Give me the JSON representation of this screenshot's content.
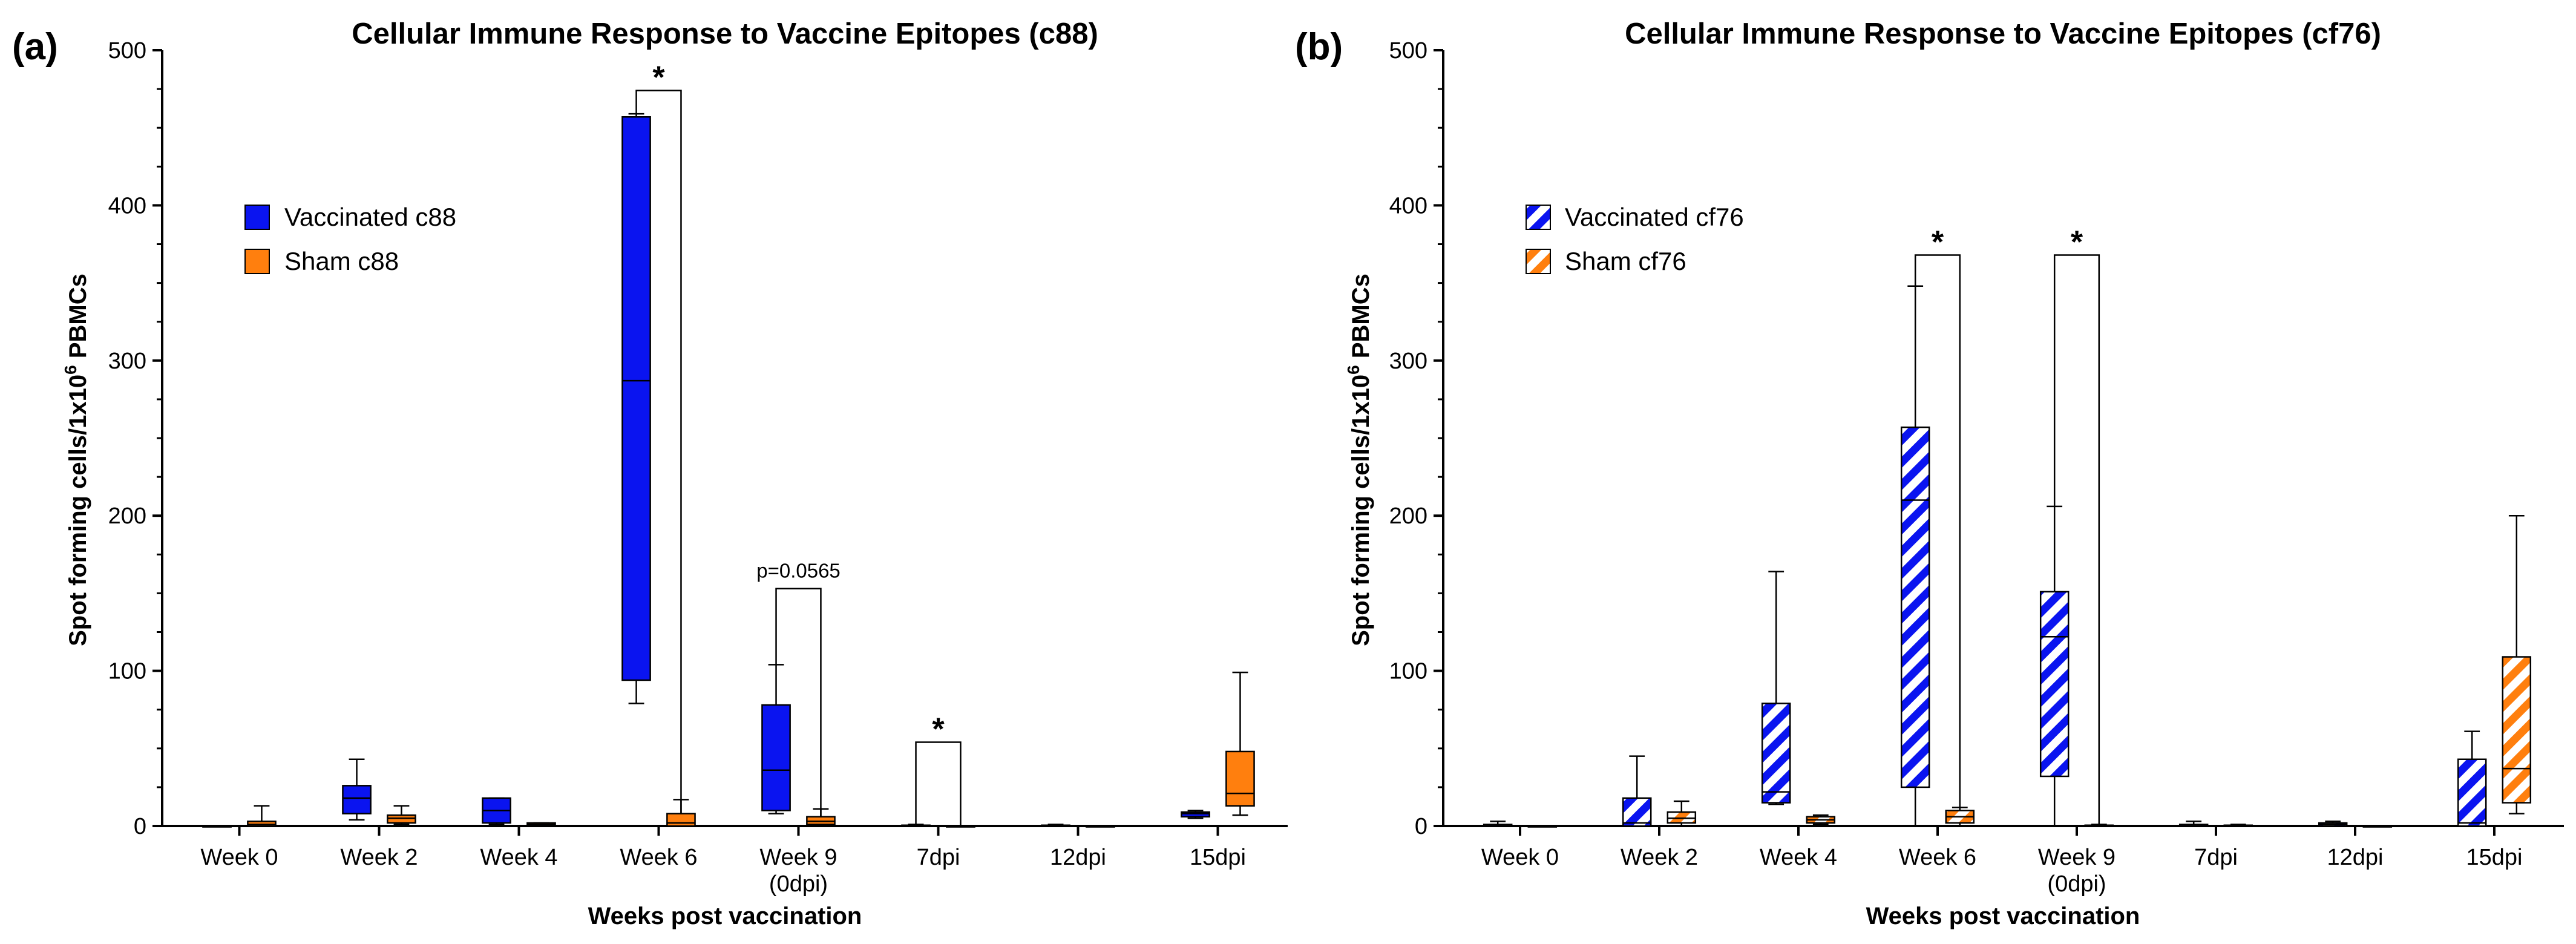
{
  "chart_data": [
    {
      "panel_label": "(a)",
      "type": "box",
      "title": "Cellular Immune Response to Vaccine Epitopes (c88)",
      "xlabel": "Weeks post vaccination",
      "ylabel_main": "Spot forming cells/1x10",
      "ylabel_sup": "6",
      "ylabel_tail": " PBMCs",
      "ylim": [
        0,
        500
      ],
      "yticks": [
        "0",
        "100",
        "200",
        "300",
        "400",
        "500"
      ],
      "categories": [
        [
          "Week 0"
        ],
        [
          "Week 2"
        ],
        [
          "Week 4"
        ],
        [
          "Week 6"
        ],
        [
          "Week 9",
          "(0dpi)"
        ],
        [
          "7dpi"
        ],
        [
          "12dpi"
        ],
        [
          "15dpi"
        ]
      ],
      "legend": [
        {
          "name": "Vaccinated c88",
          "color": "#0a14f0",
          "pattern": "solid"
        },
        {
          "name": "Sham c88",
          "color": "#ff7f0e",
          "pattern": "solid"
        }
      ],
      "series": [
        {
          "name": "Vaccinated c88",
          "color": "#0a14f0",
          "pattern": "solid",
          "boxes": [
            {
              "min": 0,
              "q1": 0,
              "median": 0,
              "q3": 0,
              "max": 0
            },
            {
              "min": 4,
              "q1": 8,
              "median": 18,
              "q3": 26,
              "max": 43
            },
            {
              "min": 1,
              "q1": 2,
              "median": 10,
              "q3": 18,
              "max": 18
            },
            {
              "min": 79,
              "q1": 94,
              "median": 287,
              "q3": 457,
              "max": 459
            },
            {
              "min": 8,
              "q1": 10,
              "median": 36,
              "q3": 78,
              "max": 104
            },
            {
              "min": 0,
              "q1": 0,
              "median": 0,
              "q3": 0.5,
              "max": 1
            },
            {
              "min": 0,
              "q1": 0,
              "median": 0,
              "q3": 0.5,
              "max": 1
            },
            {
              "min": 5,
              "q1": 6,
              "median": 8,
              "q3": 9,
              "max": 10
            }
          ]
        },
        {
          "name": "Sham c88",
          "color": "#ff7f0e",
          "pattern": "solid",
          "boxes": [
            {
              "min": 0,
              "q1": 0,
              "median": 1,
              "q3": 3,
              "max": 13
            },
            {
              "min": 1,
              "q1": 2,
              "median": 5,
              "q3": 7,
              "max": 13
            },
            {
              "min": 0,
              "q1": 0.5,
              "median": 1,
              "q3": 2,
              "max": 2
            },
            {
              "min": 0,
              "q1": 0,
              "median": 2,
              "q3": 8,
              "max": 17
            },
            {
              "min": 0,
              "q1": 1,
              "median": 3,
              "q3": 6,
              "max": 11
            },
            {
              "min": 0,
              "q1": 0,
              "median": 0,
              "q3": 0,
              "max": 0
            },
            {
              "min": 0,
              "q1": 0,
              "median": 0,
              "q3": 0,
              "max": 0
            },
            {
              "min": 7,
              "q1": 13,
              "median": 21,
              "q3": 48,
              "max": 99
            }
          ]
        }
      ],
      "brackets": [
        {
          "group": 3,
          "label": "*",
          "kind": "star",
          "y": 474
        },
        {
          "group": 4,
          "label": "p=0.0565",
          "kind": "text",
          "y": 153
        },
        {
          "group": 5,
          "label": "*",
          "kind": "star",
          "y": 54
        }
      ]
    },
    {
      "panel_label": "(b)",
      "type": "box",
      "title": "Cellular Immune Response to Vaccine Epitopes (cf76)",
      "xlabel": "Weeks post vaccination",
      "ylabel_main": "Spot forming cells/1x10",
      "ylabel_sup": "6",
      "ylabel_tail": " PBMCs",
      "ylim": [
        0,
        500
      ],
      "yticks": [
        "0",
        "100",
        "200",
        "300",
        "400",
        "500"
      ],
      "categories": [
        [
          "Week 0"
        ],
        [
          "Week 2"
        ],
        [
          "Week 4"
        ],
        [
          "Week 6"
        ],
        [
          "Week 9",
          "(0dpi)"
        ],
        [
          "7dpi"
        ],
        [
          "12dpi"
        ],
        [
          "15dpi"
        ]
      ],
      "legend": [
        {
          "name": "Vaccinated cf76",
          "color": "#0a14f0",
          "pattern": "hatched"
        },
        {
          "name": "Sham cf76",
          "color": "#ff7f0e",
          "pattern": "hatched"
        }
      ],
      "series": [
        {
          "name": "Vaccinated cf76",
          "color": "#0a14f0",
          "pattern": "hatched",
          "boxes": [
            {
              "min": 0,
              "q1": 0,
              "median": 0,
              "q3": 1,
              "max": 3
            },
            {
              "min": 0,
              "q1": 0,
              "median": 2,
              "q3": 18,
              "max": 45
            },
            {
              "min": 14,
              "q1": 15,
              "median": 22,
              "q3": 79,
              "max": 164
            },
            {
              "min": 0,
              "q1": 25,
              "median": 210,
              "q3": 257,
              "max": 348
            },
            {
              "min": 0,
              "q1": 32,
              "median": 122,
              "q3": 151,
              "max": 206
            },
            {
              "min": 0,
              "q1": 0,
              "median": 0,
              "q3": 1,
              "max": 3
            },
            {
              "min": 0,
              "q1": 0,
              "median": 1,
              "q3": 2,
              "max": 3
            },
            {
              "min": 0,
              "q1": 0,
              "median": 2,
              "q3": 43,
              "max": 61
            }
          ]
        },
        {
          "name": "Sham cf76",
          "color": "#ff7f0e",
          "pattern": "hatched",
          "boxes": [
            {
              "min": 0,
              "q1": 0,
              "median": 0,
              "q3": 0,
              "max": 0
            },
            {
              "min": 0,
              "q1": 2,
              "median": 5,
              "q3": 9,
              "max": 16
            },
            {
              "min": 1,
              "q1": 2,
              "median": 4,
              "q3": 6,
              "max": 7
            },
            {
              "min": 0,
              "q1": 2,
              "median": 6,
              "q3": 10,
              "max": 12
            },
            {
              "min": 0,
              "q1": 0,
              "median": 0,
              "q3": 0.5,
              "max": 1
            },
            {
              "min": 0,
              "q1": 0,
              "median": 0,
              "q3": 0.5,
              "max": 1
            },
            {
              "min": 0,
              "q1": 0,
              "median": 0,
              "q3": 0,
              "max": 0
            },
            {
              "min": 8,
              "q1": 15,
              "median": 37,
              "q3": 109,
              "max": 200
            }
          ]
        }
      ],
      "brackets": [
        {
          "group": 3,
          "label": "*",
          "kind": "star",
          "y": 368
        },
        {
          "group": 4,
          "label": "*",
          "kind": "star",
          "y": 368
        }
      ]
    }
  ]
}
